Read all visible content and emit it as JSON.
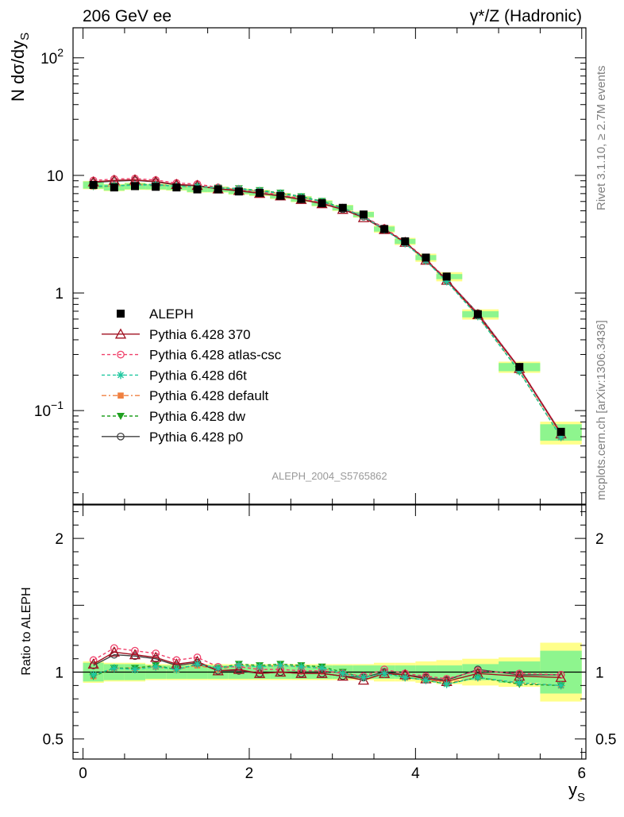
{
  "header": {
    "left": "206 GeV ee",
    "right": "γ*/Z (Hadronic)"
  },
  "side_text": {
    "rivet": "Rivet 3.1.10, ≥ 2.7M events",
    "mcplots": "mcplots.cern.ch [arXiv:1306.3436]"
  },
  "analysis_label": "ALEPH_2004_S5765862",
  "colors": {
    "data": "#000000",
    "band_inner": "#8ef58e",
    "band_outer": "#ffff8a",
    "p370": "#a01020",
    "atlas_csc": "#f0406a",
    "d6t": "#20c8a0",
    "default": "#f08040",
    "dw": "#20a020",
    "p0": "#404040"
  },
  "chart_data": [
    {
      "type": "line",
      "panel": "main",
      "xlabel": "y",
      "xlabel_sub": "S",
      "ylabel": "N dσ/dy",
      "ylabel_sub": "S",
      "y_scale": "log",
      "ylim": [
        0.016,
        180
      ],
      "xlim": [
        -0.12,
        6.05
      ],
      "x_ticks": [
        0,
        2,
        4,
        6
      ],
      "y_tick_labels": [
        {
          "value": 0.1,
          "base": "10",
          "exp": "−1"
        },
        {
          "value": 1,
          "base": "1",
          "exp": ""
        },
        {
          "value": 10,
          "base": "10",
          "exp": ""
        },
        {
          "value": 100,
          "base": "10",
          "exp": "2"
        }
      ],
      "x": [
        0.125,
        0.375,
        0.625,
        0.875,
        1.125,
        1.375,
        1.625,
        1.875,
        2.125,
        2.375,
        2.625,
        2.875,
        3.125,
        3.375,
        3.625,
        3.875,
        4.125,
        4.375,
        4.75,
        5.25,
        5.75
      ],
      "legend": [
        "ALEPH",
        "Pythia 6.428 370",
        "Pythia 6.428 atlas-csc",
        "Pythia 6.428 d6t",
        "Pythia 6.428 default",
        "Pythia 6.428 dw",
        "Pythia 6.428 p0"
      ],
      "data": {
        "name": "ALEPH",
        "values": [
          8.3,
          7.9,
          8.1,
          8.0,
          7.9,
          7.6,
          7.6,
          7.3,
          7.1,
          6.7,
          6.3,
          5.8,
          5.3,
          4.65,
          3.5,
          2.75,
          2.0,
          1.38,
          0.66,
          0.235,
          0.066
        ],
        "band_inner": [
          0.07,
          0.06,
          0.06,
          0.05,
          0.05,
          0.05,
          0.05,
          0.05,
          0.05,
          0.05,
          0.05,
          0.05,
          0.05,
          0.05,
          0.05,
          0.05,
          0.05,
          0.05,
          0.06,
          0.08,
          0.16
        ],
        "band_outer": [
          0.08,
          0.07,
          0.07,
          0.06,
          0.06,
          0.06,
          0.06,
          0.06,
          0.06,
          0.06,
          0.06,
          0.06,
          0.06,
          0.06,
          0.07,
          0.07,
          0.08,
          0.09,
          0.1,
          0.11,
          0.22
        ]
      },
      "series": [
        {
          "name": "Pythia 6.428 370",
          "style": "p370",
          "marker": "triangle-open",
          "dash": "",
          "ratio": [
            1.06,
            1.15,
            1.13,
            1.11,
            1.06,
            1.08,
            1.01,
            1.02,
            0.99,
            1.0,
            0.99,
            0.99,
            0.97,
            0.94,
            0.99,
            0.98,
            0.95,
            0.93,
            0.99,
            0.97,
            0.96
          ]
        },
        {
          "name": "Pythia 6.428 atlas-csc",
          "style": "atlas_csc",
          "marker": "circle-open",
          "dash": "4,3",
          "ratio": [
            1.09,
            1.18,
            1.16,
            1.14,
            1.09,
            1.11,
            1.04,
            1.04,
            1.02,
            1.02,
            1.01,
            1.01,
            0.99,
            0.97,
            1.02,
            0.99,
            0.97,
            0.95,
            1.01,
            0.99,
            0.98
          ]
        },
        {
          "name": "Pythia 6.428 d6t",
          "style": "d6t",
          "marker": "star",
          "dash": "4,3",
          "ratio": [
            0.98,
            1.03,
            1.02,
            1.04,
            1.02,
            1.06,
            1.03,
            1.05,
            1.04,
            1.05,
            1.04,
            1.03,
            0.99,
            0.96,
            0.99,
            0.96,
            0.94,
            0.91,
            0.96,
            0.92,
            0.9
          ]
        },
        {
          "name": "Pythia 6.428 default",
          "style": "default",
          "marker": "square",
          "dash": "6,3,2,3",
          "ratio": [
            0.97,
            1.03,
            1.03,
            1.04,
            1.02,
            1.05,
            1.02,
            1.05,
            1.04,
            1.05,
            1.04,
            1.03,
            0.99,
            0.96,
            1.0,
            0.96,
            0.94,
            0.92,
            0.96,
            0.92,
            0.9
          ]
        },
        {
          "name": "Pythia 6.428 dw",
          "style": "dw",
          "marker": "triangle-down",
          "dash": "4,3",
          "ratio": [
            0.97,
            1.03,
            1.03,
            1.05,
            1.02,
            1.06,
            1.03,
            1.06,
            1.05,
            1.06,
            1.05,
            1.04,
            1.0,
            0.96,
            1.0,
            0.96,
            0.94,
            0.91,
            0.96,
            0.91,
            0.9
          ]
        },
        {
          "name": "Pythia 6.428 p0",
          "style": "p0",
          "marker": "circle-open",
          "dash": "",
          "ratio": [
            1.05,
            1.13,
            1.12,
            1.1,
            1.05,
            1.07,
            1.01,
            1.01,
            0.99,
            1.0,
            0.99,
            0.99,
            0.97,
            0.96,
            1.0,
            0.98,
            0.96,
            0.94,
            1.02,
            0.98,
            0.98
          ]
        }
      ]
    },
    {
      "type": "line",
      "panel": "ratio",
      "ylabel": "Ratio to ALEPH",
      "ylim": [
        0.35,
        2.25
      ],
      "y_ticks": [
        0.5,
        1,
        2
      ],
      "y_tick_labels": [
        "0.5",
        "1",
        "2"
      ],
      "note": "ratio of each series to ALEPH data, uses same x and series ratio values"
    }
  ]
}
